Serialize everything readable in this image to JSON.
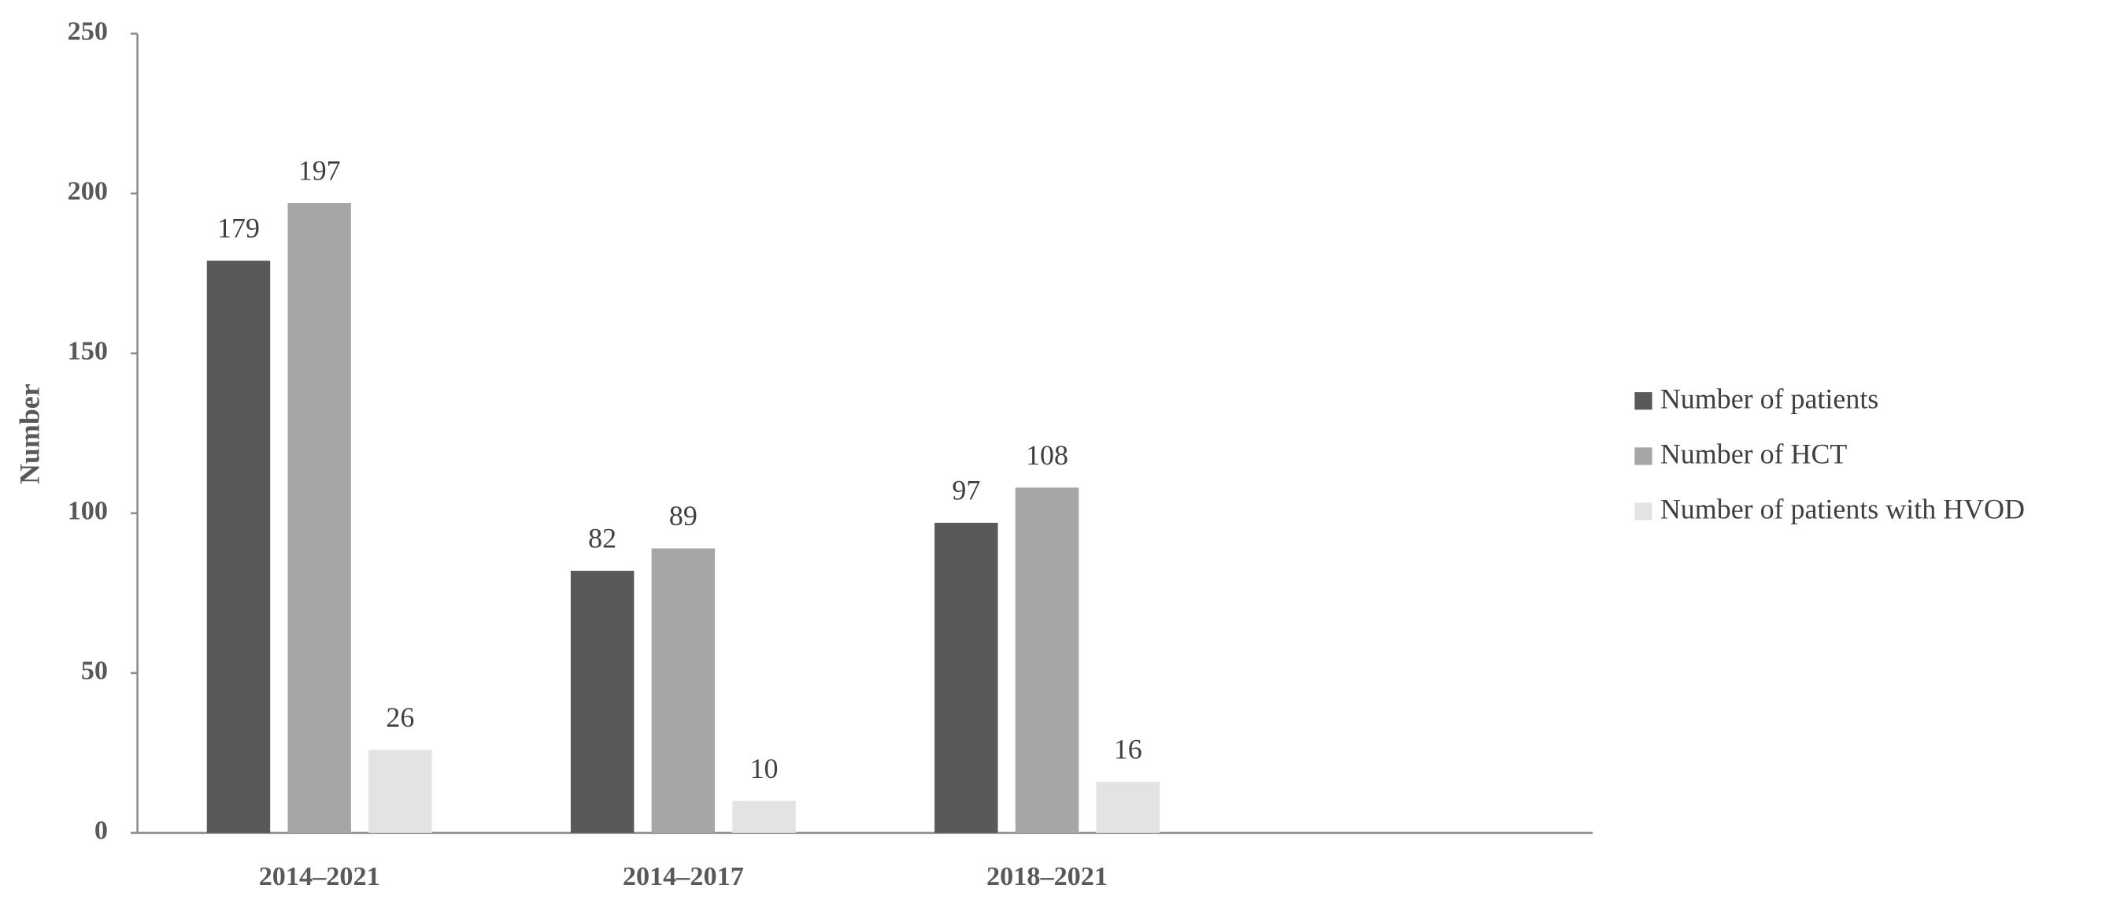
{
  "chart_data": {
    "type": "bar",
    "y_label": "Number",
    "categories": [
      "2014–2021",
      "2014–2017",
      "2018–2021",
      null
    ],
    "series": [
      {
        "name": "Number of patients",
        "color": "#595959",
        "values": [
          179,
          82,
          97,
          null
        ]
      },
      {
        "name": "Number of HCT",
        "color": "#a6a6a6",
        "values": [
          197,
          89,
          108,
          null
        ]
      },
      {
        "name": "Number of patients with HVOD",
        "color": "#e3e3e3",
        "values": [
          26,
          10,
          16,
          null
        ]
      }
    ],
    "ylim": [
      0,
      250
    ],
    "yticks": [
      0,
      50,
      100,
      150,
      200,
      250
    ],
    "grid": false,
    "legend": "right"
  }
}
